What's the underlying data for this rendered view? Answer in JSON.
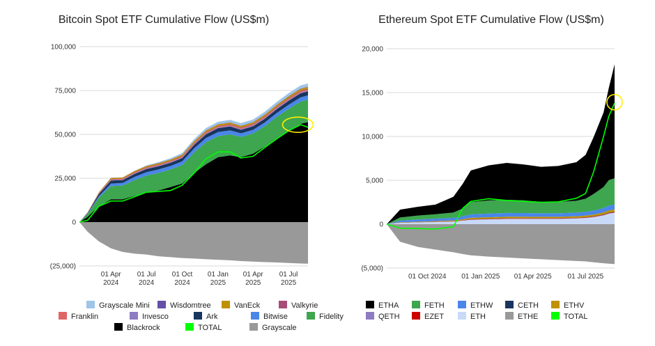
{
  "chart_data": [
    {
      "id": "btc",
      "type": "area",
      "title": "Bitcoin Spot ETF Cumulative Flow (US$m)",
      "xlabel": "",
      "ylabel": "",
      "x_range": [
        "2024-01-11",
        "2025-08-20"
      ],
      "ylim": [
        -25000,
        100000
      ],
      "y_ticks": [
        {
          "value": 100000,
          "label": "100,000"
        },
        {
          "value": 75000,
          "label": "75,000"
        },
        {
          "value": 50000,
          "label": "50,000"
        },
        {
          "value": 25000,
          "label": "25,000"
        },
        {
          "value": 0,
          "label": "0"
        },
        {
          "value": -25000,
          "label": "(25,000)"
        }
      ],
      "x_ticks": [
        {
          "date": "2024-04-01",
          "line1": "01 Apr",
          "line2": "2024"
        },
        {
          "date": "2024-07-01",
          "line1": "01 Jul",
          "line2": "2024"
        },
        {
          "date": "2024-10-01",
          "line1": "01 Oct",
          "line2": "2024"
        },
        {
          "date": "2025-01-01",
          "line1": "01 Jan",
          "line2": "2025"
        },
        {
          "date": "2025-04-01",
          "line1": "01 Apr",
          "line2": "2025"
        },
        {
          "date": "2025-07-01",
          "line1": "01 Jul",
          "line2": "2025"
        }
      ],
      "dates": [
        "2024-01-11",
        "2024-02-01",
        "2024-03-01",
        "2024-04-01",
        "2024-05-01",
        "2024-06-01",
        "2024-07-01",
        "2024-08-01",
        "2024-09-01",
        "2024-10-01",
        "2024-11-01",
        "2024-12-01",
        "2025-01-01",
        "2025-02-01",
        "2025-03-01",
        "2025-04-01",
        "2025-05-01",
        "2025-06-01",
        "2025-07-01",
        "2025-08-01",
        "2025-08-20"
      ],
      "stack_order": [
        "Blackrock",
        "Fidelity",
        "Bitwise",
        "Ark",
        "Invesco",
        "Franklin",
        "Valkyrie",
        "VanEck",
        "Wisdomtree",
        "Grayscale Mini"
      ],
      "series": [
        {
          "name": "Blackrock",
          "color": "#000000",
          "values": [
            0,
            3000,
            9000,
            13000,
            13000,
            15000,
            17000,
            18000,
            20000,
            22000,
            28000,
            33000,
            37000,
            38000,
            37000,
            39000,
            43000,
            48000,
            52000,
            56000,
            57000
          ]
        },
        {
          "name": "Fidelity",
          "color": "#3da64e",
          "values": [
            0,
            1500,
            5000,
            7500,
            7800,
            9000,
            9500,
            10000,
            10000,
            10500,
            11800,
            12500,
            12000,
            12000,
            11500,
            11500,
            11700,
            12000,
            12500,
            12700,
            12800
          ]
        },
        {
          "name": "Bitwise",
          "color": "#4a86e8",
          "values": [
            0,
            300,
            800,
            1400,
            1500,
            1800,
            1900,
            2000,
            2000,
            2100,
            2300,
            2400,
            2300,
            2300,
            2100,
            2100,
            2100,
            2200,
            2300,
            2400,
            2400
          ]
        },
        {
          "name": "Ark",
          "color": "#17355e",
          "values": [
            0,
            400,
            1200,
            1800,
            1600,
            1700,
            1800,
            1800,
            1800,
            1900,
            2000,
            2100,
            2200,
            2200,
            2000,
            2000,
            2100,
            2200,
            2300,
            2300,
            2300
          ]
        },
        {
          "name": "Invesco",
          "color": "#8e7cc3",
          "values": [
            0,
            50,
            150,
            250,
            250,
            280,
            300,
            310,
            320,
            330,
            350,
            360,
            370,
            380,
            380,
            390,
            400,
            410,
            420,
            430,
            430
          ]
        },
        {
          "name": "Franklin",
          "color": "#e06666",
          "values": [
            0,
            80,
            200,
            300,
            320,
            350,
            370,
            380,
            400,
            420,
            460,
            490,
            500,
            510,
            510,
            520,
            540,
            570,
            600,
            620,
            630
          ]
        },
        {
          "name": "Valkyrie",
          "color": "#a64d79",
          "values": [
            0,
            80,
            200,
            300,
            300,
            320,
            330,
            330,
            340,
            350,
            380,
            400,
            410,
            410,
            410,
            420,
            430,
            450,
            460,
            470,
            470
          ]
        },
        {
          "name": "VanEck",
          "color": "#bf9000",
          "values": [
            0,
            150,
            400,
            600,
            600,
            650,
            700,
            720,
            740,
            760,
            820,
            860,
            880,
            880,
            870,
            880,
            900,
            950,
            1000,
            1020,
            1030
          ]
        },
        {
          "name": "Wisdomtree",
          "color": "#674ea7",
          "values": [
            0,
            20,
            60,
            100,
            100,
            110,
            120,
            120,
            125,
            130,
            140,
            150,
            155,
            155,
            155,
            160,
            165,
            170,
            175,
            180,
            180
          ]
        },
        {
          "name": "Grayscale Mini",
          "color": "#9fc5e8",
          "values": [
            0,
            0,
            0,
            0,
            0,
            0,
            200,
            500,
            700,
            900,
            1100,
            1300,
            1400,
            1450,
            1500,
            1500,
            1550,
            1600,
            1700,
            1750,
            1800
          ]
        },
        {
          "name": "Grayscale",
          "color": "#999999",
          "values": [
            0,
            -5500,
            -11000,
            -15000,
            -17000,
            -18000,
            -18500,
            -19500,
            -20000,
            -20500,
            -20800,
            -21200,
            -21500,
            -21800,
            -22200,
            -22500,
            -22800,
            -23000,
            -23300,
            -23600,
            -23700
          ]
        },
        {
          "name": "TOTAL",
          "color": "#00ff00",
          "values": [
            0,
            1000,
            9000,
            12000,
            12000,
            14500,
            17000,
            17500,
            18000,
            21000,
            28000,
            36000,
            40000,
            40000,
            36500,
            37500,
            42500,
            47500,
            52000,
            55500,
            54000
          ]
        }
      ],
      "legend_rows": [
        [
          "Grayscale Mini",
          "Wisdomtree",
          "VanEck",
          "Valkyrie"
        ],
        [
          "Franklin",
          "Invesco",
          "Ark",
          "Bitwise",
          "Fidelity"
        ],
        [
          "Blackrock",
          "TOTAL",
          "Grayscale"
        ]
      ]
    },
    {
      "id": "eth",
      "type": "area",
      "title": "Ethereum Spot ETF Cumulative Flow (US$m)",
      "xlabel": "",
      "ylabel": "",
      "x_range": [
        "2024-07-23",
        "2025-08-20"
      ],
      "ylim": [
        -5000,
        20000
      ],
      "y_ticks": [
        {
          "value": 20000,
          "label": "20,000"
        },
        {
          "value": 15000,
          "label": "15,000"
        },
        {
          "value": 10000,
          "label": "10,000"
        },
        {
          "value": 5000,
          "label": "5,000"
        },
        {
          "value": 0,
          "label": "0"
        },
        {
          "value": -5000,
          "label": "(5,000)"
        }
      ],
      "x_ticks": [
        {
          "date": "2024-10-01",
          "line1": "01 Oct 2024",
          "line2": ""
        },
        {
          "date": "2025-01-01",
          "line1": "01 Jan 2025",
          "line2": ""
        },
        {
          "date": "2025-04-01",
          "line1": "01 Apr 2025",
          "line2": ""
        },
        {
          "date": "2025-07-01",
          "line1": "01 Jul 2025",
          "line2": ""
        }
      ],
      "dates": [
        "2024-07-23",
        "2024-08-15",
        "2024-09-15",
        "2024-10-15",
        "2024-11-15",
        "2024-12-01",
        "2024-12-15",
        "2025-01-15",
        "2025-02-15",
        "2025-03-15",
        "2025-04-15",
        "2025-05-15",
        "2025-06-15",
        "2025-07-01",
        "2025-07-15",
        "2025-08-01",
        "2025-08-10",
        "2025-08-20"
      ],
      "stack_order": [
        "ETH",
        "QETH",
        "EZET",
        "CETH",
        "ETHV",
        "ETHW",
        "FETH",
        "ETHA"
      ],
      "series": [
        {
          "name": "ETH",
          "color": "#c9daf8",
          "values": [
            0,
            150,
            200,
            250,
            300,
            400,
            500,
            550,
            600,
            600,
            600,
            600,
            650,
            700,
            800,
            1000,
            1200,
            1300
          ]
        },
        {
          "name": "QETH",
          "color": "#8e7cc3",
          "values": [
            0,
            5,
            8,
            10,
            12,
            15,
            18,
            20,
            20,
            20,
            20,
            20,
            22,
            25,
            28,
            30,
            32,
            33
          ]
        },
        {
          "name": "EZET",
          "color": "#cc0000",
          "values": [
            0,
            10,
            15,
            20,
            25,
            30,
            35,
            38,
            40,
            40,
            40,
            40,
            42,
            45,
            48,
            50,
            52,
            53
          ]
        },
        {
          "name": "CETH",
          "color": "#17355e",
          "values": [
            0,
            5,
            8,
            10,
            12,
            15,
            18,
            20,
            20,
            20,
            20,
            20,
            22,
            25,
            28,
            30,
            32,
            33
          ]
        },
        {
          "name": "ETHV",
          "color": "#bf9000",
          "values": [
            0,
            40,
            50,
            60,
            80,
            100,
            150,
            160,
            170,
            170,
            160,
            160,
            170,
            180,
            200,
            230,
            250,
            260
          ]
        },
        {
          "name": "ETHW",
          "color": "#4a86e8",
          "values": [
            0,
            200,
            250,
            280,
            300,
            330,
            400,
            420,
            430,
            420,
            400,
            400,
            410,
            420,
            450,
            500,
            550,
            560
          ]
        },
        {
          "name": "FETH",
          "color": "#3da64e",
          "values": [
            0,
            350,
            450,
            500,
            600,
            900,
            1400,
            1500,
            1500,
            1450,
            1300,
            1300,
            1350,
            1500,
            1900,
            2400,
            2900,
            3000
          ]
        },
        {
          "name": "ETHA",
          "color": "#000000",
          "values": [
            0,
            900,
            1000,
            1100,
            1800,
            2800,
            3600,
            4000,
            4200,
            4100,
            4000,
            4100,
            4400,
            5000,
            6500,
            8500,
            10500,
            13000
          ]
        },
        {
          "name": "ETHE",
          "color": "#999999",
          "values": [
            0,
            -2000,
            -2600,
            -2900,
            -3200,
            -3400,
            -3550,
            -3700,
            -3800,
            -3900,
            -4000,
            -4100,
            -4200,
            -4250,
            -4350,
            -4450,
            -4500,
            -4550
          ]
        },
        {
          "name": "TOTAL",
          "color": "#00ff00",
          "values": [
            0,
            -450,
            -500,
            -550,
            -300,
            1800,
            2600,
            2900,
            2700,
            2600,
            2500,
            2550,
            2950,
            3500,
            6000,
            10000,
            12300,
            13800
          ]
        }
      ],
      "legend_rows": [
        [
          "ETHA",
          "FETH",
          "ETHW",
          "CETH",
          "ETHV"
        ],
        [
          "QETH",
          "EZET",
          "ETH",
          "ETHE",
          "TOTAL"
        ]
      ]
    }
  ]
}
